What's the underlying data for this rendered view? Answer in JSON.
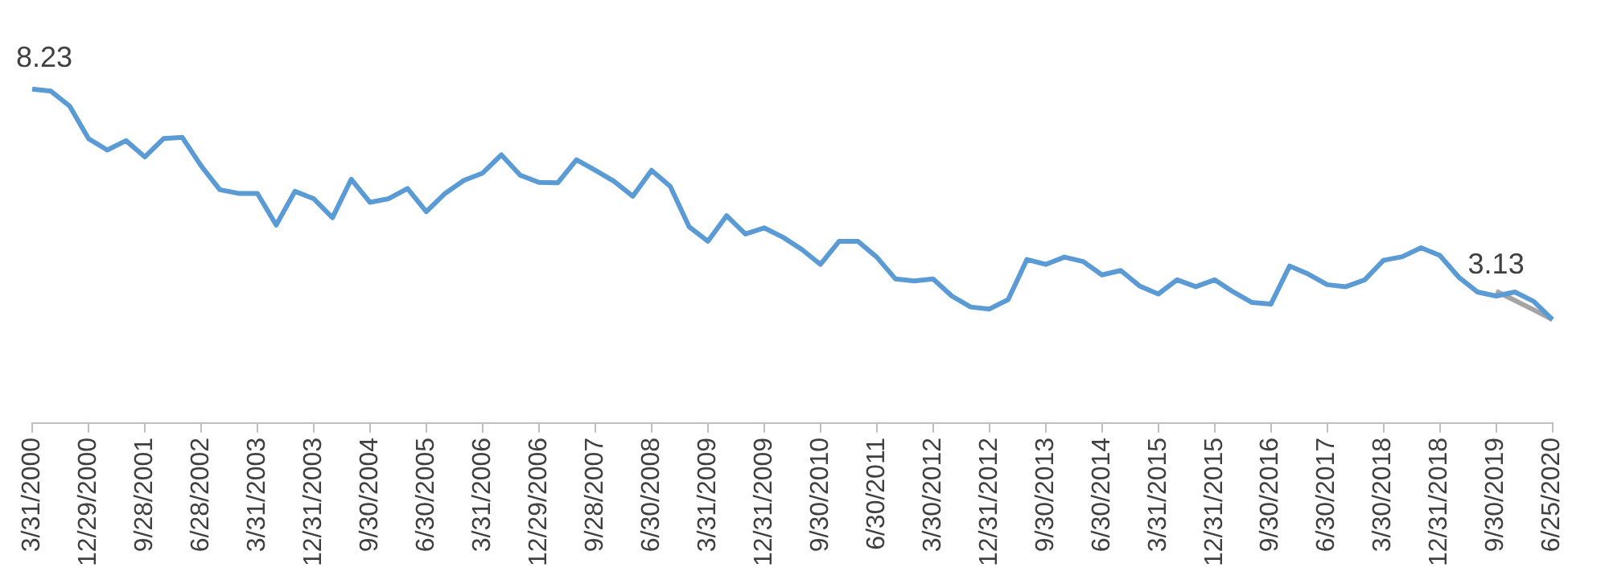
{
  "chart_data": {
    "type": "line",
    "categories": [
      "3/31/2000",
      null,
      null,
      "12/29/2000",
      null,
      null,
      "9/28/2001",
      null,
      null,
      "6/28/2002",
      null,
      null,
      "3/31/2003",
      null,
      null,
      "12/31/2003",
      null,
      null,
      "9/30/2004",
      null,
      null,
      "6/30/2005",
      null,
      null,
      "3/31/2006",
      null,
      null,
      "12/29/2006",
      null,
      null,
      "9/28/2007",
      null,
      null,
      "6/30/2008",
      null,
      null,
      "3/31/2009",
      null,
      null,
      "12/31/2009",
      null,
      null,
      "9/30/2010",
      null,
      null,
      "6/30/2011",
      null,
      null,
      "3/30/2012",
      null,
      null,
      "12/31/2012",
      null,
      null,
      "9/30/2013",
      null,
      null,
      "6/30/2014",
      null,
      null,
      "3/31/2015",
      null,
      null,
      "12/31/2015",
      null,
      null,
      "9/30/2016",
      null,
      null,
      "6/30/2017",
      null,
      null,
      "3/30/2018",
      null,
      null,
      "12/31/2018",
      null,
      null,
      "9/30/2019",
      null,
      null,
      "6/25/2020"
    ],
    "series": [
      {
        "color": "#5b9bd5",
        "values": [
          8.23,
          8.18,
          7.81,
          7.01,
          6.73,
          6.96,
          6.56,
          7.01,
          7.04,
          6.34,
          5.75,
          5.66,
          5.66,
          4.88,
          5.71,
          5.53,
          5.06,
          6.01,
          5.44,
          5.53,
          5.78,
          5.21,
          5.66,
          5.98,
          6.16,
          6.61,
          6.11,
          5.93,
          5.92,
          6.49,
          6.23,
          5.96,
          5.59,
          6.23,
          5.83,
          4.84,
          4.48,
          5.11,
          4.66,
          4.81,
          4.58,
          4.28,
          3.91,
          4.48,
          4.48,
          4.09,
          3.55,
          3.5,
          3.55,
          3.13,
          2.86,
          2.81,
          3.04,
          4.03,
          3.91,
          4.09,
          3.98,
          3.65,
          3.76,
          3.38,
          3.18,
          3.53,
          3.36,
          3.53,
          3.23,
          2.97,
          2.93,
          3.87,
          3.67,
          3.41,
          3.36,
          3.53,
          4.01,
          4.1,
          4.32,
          4.13,
          3.6,
          3.23,
          3.13,
          3.23,
          3.0,
          2.55
        ],
        "value_labels": [
          "8.23",
          null,
          null,
          null,
          null,
          null,
          null,
          null,
          null,
          null,
          null,
          null,
          null,
          null,
          null,
          null,
          null,
          null,
          null,
          null,
          null,
          null,
          null,
          null,
          null,
          null,
          null,
          null,
          null,
          null,
          null,
          null,
          null,
          null,
          null,
          null,
          null,
          null,
          null,
          null,
          null,
          null,
          null,
          null,
          null,
          null,
          null,
          null,
          null,
          null,
          null,
          null,
          null,
          null,
          null,
          null,
          null,
          null,
          null,
          null,
          null,
          null,
          null,
          null,
          null,
          null,
          null,
          null,
          null,
          null,
          null,
          null,
          null,
          null,
          null,
          null,
          null,
          null,
          "3.13",
          null,
          null,
          null
        ]
      },
      {
        "color": "#a5a5a5",
        "values": [
          null,
          null,
          null,
          null,
          null,
          null,
          null,
          null,
          null,
          null,
          null,
          null,
          null,
          null,
          null,
          null,
          null,
          null,
          null,
          null,
          null,
          null,
          null,
          null,
          null,
          null,
          null,
          null,
          null,
          null,
          null,
          null,
          null,
          null,
          null,
          null,
          null,
          null,
          null,
          null,
          null,
          null,
          null,
          null,
          null,
          null,
          null,
          null,
          null,
          null,
          null,
          null,
          null,
          null,
          null,
          null,
          null,
          null,
          null,
          null,
          null,
          null,
          null,
          null,
          null,
          null,
          null,
          null,
          null,
          null,
          null,
          null,
          null,
          null,
          null,
          null,
          null,
          null,
          3.25,
          3.02,
          2.79,
          2.55
        ]
      }
    ],
    "tick_labels": "x",
    "grid": false,
    "legend": false,
    "marker": "none",
    "line_style": "solid"
  }
}
